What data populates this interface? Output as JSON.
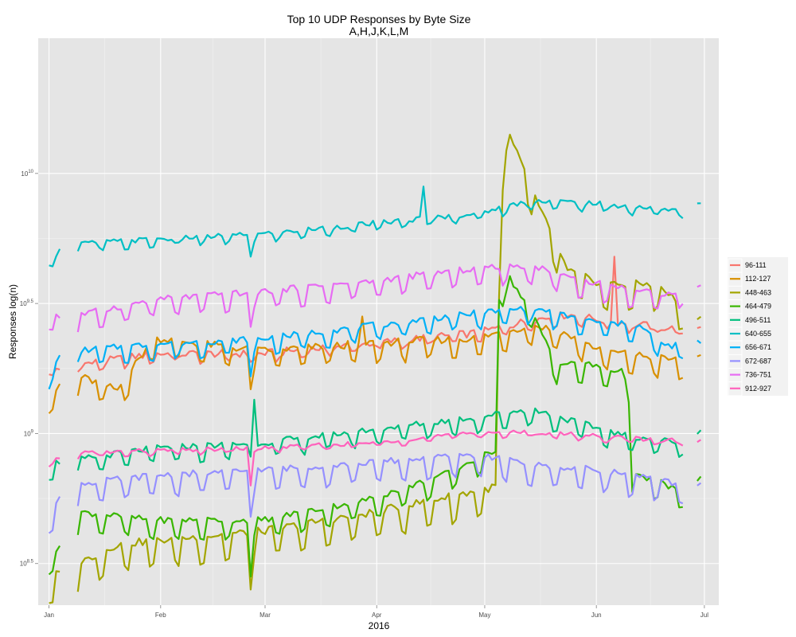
{
  "chart_data": {
    "type": "line",
    "title": "Top 10 UDP Responses by Byte Size",
    "subtitle": "A,H,J,K,L,M",
    "xlabel": "2016",
    "ylabel": "Responses log(n)",
    "y_scale": "log10",
    "grid": true,
    "legend_position": "right",
    "x_ticks": [
      "Jan",
      "Feb",
      "Mar",
      "Apr",
      "May",
      "Jun",
      "Jul"
    ],
    "y_ticks": [
      "10^8.5",
      "10^9",
      "10^9.5",
      "10^10"
    ],
    "x_range_day_of_year": [
      -2,
      187
    ],
    "y_range_log10": [
      8.34,
      10.52
    ],
    "gap_days": [
      [
        5,
        8
      ],
      [
        178,
        180
      ]
    ],
    "series": [
      {
        "name": "96-111",
        "color": "#F8766D",
        "trend": [
          [
            1,
            9.24
          ],
          [
            30,
            9.3
          ],
          [
            60,
            9.3
          ],
          [
            90,
            9.34
          ],
          [
            120,
            9.38
          ],
          [
            135,
            9.43
          ],
          [
            145,
            9.45
          ],
          [
            160,
            9.42
          ],
          [
            178,
            9.39
          ],
          [
            182,
            9.41
          ]
        ],
        "amp": 0.02,
        "noise": 0.015,
        "spikes": [
          [
            158,
            9.68
          ]
        ]
      },
      {
        "name": "112-127",
        "color": "#D89000",
        "trend": [
          [
            1,
            9.14
          ],
          [
            10,
            9.2
          ],
          [
            20,
            9.15
          ],
          [
            30,
            9.35
          ],
          [
            60,
            9.3
          ],
          [
            90,
            9.33
          ],
          [
            120,
            9.35
          ],
          [
            135,
            9.4
          ],
          [
            142,
            9.38
          ],
          [
            155,
            9.3
          ],
          [
            178,
            9.26
          ],
          [
            182,
            9.27
          ]
        ],
        "amp": 0.05,
        "noise": 0.015,
        "spikes": [
          [
            57,
            9.17
          ],
          [
            88,
            9.45
          ]
        ]
      },
      {
        "name": "448-463",
        "color": "#A3A500",
        "trend": [
          [
            1,
            8.42
          ],
          [
            20,
            8.55
          ],
          [
            60,
            8.6
          ],
          [
            90,
            8.67
          ],
          [
            118,
            8.75
          ],
          [
            125,
            8.77
          ],
          [
            126,
            9.5
          ],
          [
            127,
            10.0
          ],
          [
            128,
            10.15
          ],
          [
            131,
            10.05
          ],
          [
            137,
            9.85
          ],
          [
            145,
            9.6
          ],
          [
            155,
            9.55
          ],
          [
            170,
            9.55
          ],
          [
            178,
            9.45
          ],
          [
            182,
            9.42
          ]
        ],
        "amp": 0.07,
        "noise": 0.015,
        "spikes": [
          [
            57,
            8.4
          ]
        ]
      },
      {
        "name": "464-479",
        "color": "#39B600",
        "trend": [
          [
            1,
            8.5
          ],
          [
            10,
            8.68
          ],
          [
            30,
            8.65
          ],
          [
            60,
            8.65
          ],
          [
            90,
            8.73
          ],
          [
            110,
            8.82
          ],
          [
            125,
            8.92
          ],
          [
            126,
            9.5
          ],
          [
            128,
            9.6
          ],
          [
            135,
            9.45
          ],
          [
            142,
            9.25
          ],
          [
            150,
            9.25
          ],
          [
            160,
            9.22
          ],
          [
            162,
            9.18
          ],
          [
            163,
            8.82
          ],
          [
            170,
            8.8
          ],
          [
            178,
            8.75
          ],
          [
            182,
            8.82
          ]
        ],
        "amp": 0.05,
        "noise": 0.012,
        "spikes": [
          [
            57,
            8.45
          ]
        ]
      },
      {
        "name": "496-511",
        "color": "#00BF7D",
        "trend": [
          [
            1,
            8.87
          ],
          [
            30,
            8.93
          ],
          [
            60,
            8.95
          ],
          [
            90,
            9.0
          ],
          [
            120,
            9.05
          ],
          [
            135,
            9.08
          ],
          [
            150,
            9.02
          ],
          [
            160,
            8.98
          ],
          [
            178,
            8.95
          ],
          [
            182,
            9.0
          ]
        ],
        "amp": 0.04,
        "noise": 0.012,
        "spikes": [
          [
            58,
            9.13
          ],
          [
            119,
            9.05
          ]
        ]
      },
      {
        "name": "640-655",
        "color": "#00BFC4",
        "trend": [
          [
            1,
            9.66
          ],
          [
            6,
            9.72
          ],
          [
            30,
            9.74
          ],
          [
            60,
            9.76
          ],
          [
            90,
            9.8
          ],
          [
            120,
            9.84
          ],
          [
            135,
            9.89
          ],
          [
            150,
            9.88
          ],
          [
            178,
            9.85
          ],
          [
            182,
            9.88
          ]
        ],
        "amp": 0.02,
        "noise": 0.01,
        "spikes": [
          [
            57,
            9.68
          ],
          [
            105,
            9.95
          ]
        ]
      },
      {
        "name": "656-671",
        "color": "#00B0F6",
        "trend": [
          [
            1,
            9.22
          ],
          [
            5,
            9.3
          ],
          [
            30,
            9.33
          ],
          [
            60,
            9.35
          ],
          [
            90,
            9.4
          ],
          [
            120,
            9.45
          ],
          [
            135,
            9.47
          ],
          [
            150,
            9.42
          ],
          [
            165,
            9.4
          ],
          [
            172,
            9.32
          ],
          [
            182,
            9.34
          ]
        ],
        "amp": 0.04,
        "noise": 0.012,
        "spikes": [
          [
            57,
            9.22
          ]
        ]
      },
      {
        "name": "672-687",
        "color": "#9590FF",
        "trend": [
          [
            1,
            8.66
          ],
          [
            5,
            8.78
          ],
          [
            30,
            8.82
          ],
          [
            60,
            8.84
          ],
          [
            90,
            8.87
          ],
          [
            120,
            8.9
          ],
          [
            135,
            8.86
          ],
          [
            155,
            8.84
          ],
          [
            170,
            8.8
          ],
          [
            182,
            8.78
          ]
        ],
        "amp": 0.055,
        "noise": 0.012,
        "spikes": [
          [
            57,
            8.68
          ]
        ]
      },
      {
        "name": "736-751",
        "color": "#E76BF3",
        "trend": [
          [
            1,
            9.45
          ],
          [
            6,
            9.43
          ],
          [
            30,
            9.5
          ],
          [
            60,
            9.53
          ],
          [
            90,
            9.57
          ],
          [
            120,
            9.62
          ],
          [
            135,
            9.63
          ],
          [
            150,
            9.57
          ],
          [
            170,
            9.52
          ],
          [
            182,
            9.55
          ]
        ],
        "amp": 0.045,
        "noise": 0.012,
        "spikes": [
          [
            57,
            9.41
          ]
        ]
      },
      {
        "name": "912-927",
        "color": "#FF62BC",
        "trend": [
          [
            1,
            8.88
          ],
          [
            6,
            8.92
          ],
          [
            30,
            8.93
          ],
          [
            60,
            8.94
          ],
          [
            90,
            8.96
          ],
          [
            120,
            9.0
          ],
          [
            135,
            9.0
          ],
          [
            150,
            8.99
          ],
          [
            170,
            8.97
          ],
          [
            182,
            8.97
          ]
        ],
        "amp": 0.012,
        "noise": 0.008,
        "spikes": [
          [
            57,
            8.8
          ]
        ]
      }
    ]
  }
}
